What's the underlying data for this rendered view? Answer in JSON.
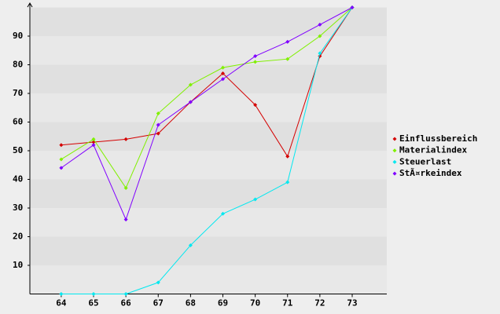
{
  "chart_data": {
    "type": "line",
    "x": [
      64,
      65,
      66,
      67,
      68,
      69,
      70,
      71,
      72,
      73
    ],
    "xlim": [
      63.03,
      74.07
    ],
    "xticks": [
      64,
      65,
      66,
      67,
      68,
      69,
      70,
      71,
      72,
      73
    ],
    "ylim": [
      0,
      100
    ],
    "yticks": [
      10,
      20,
      30,
      40,
      50,
      60,
      70,
      80,
      90
    ],
    "legend": "right",
    "series": [
      {
        "name": "Einflussbereich",
        "color": "#d40000",
        "values": [
          52,
          53,
          54,
          56,
          67,
          77,
          66,
          48,
          83,
          100
        ]
      },
      {
        "name": "Materialindex",
        "color": "#80f000",
        "values": [
          47,
          54,
          37,
          63,
          73,
          79,
          81,
          82,
          90,
          100
        ]
      },
      {
        "name": "Steuerlast",
        "color": "#00e8f0",
        "values": [
          0,
          0,
          0,
          4,
          17,
          28,
          33,
          39,
          84,
          100
        ]
      },
      {
        "name": "StÃ¤rkeindex",
        "color": "#8000ff",
        "values": [
          44,
          52,
          26,
          59,
          67,
          75,
          83,
          88,
          94,
          100
        ]
      }
    ]
  }
}
